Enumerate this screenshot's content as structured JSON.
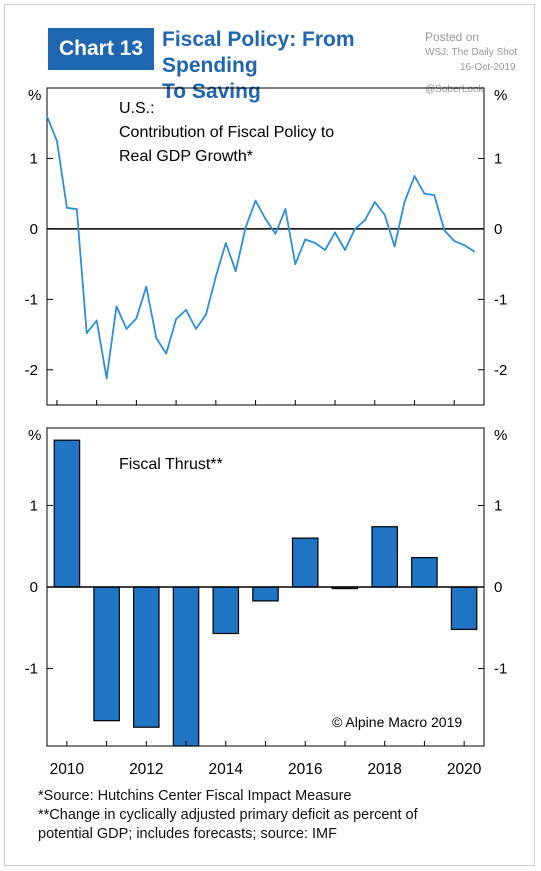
{
  "header": {
    "chart_label": "Chart 13",
    "title_line1": "Fiscal Policy: From Spending",
    "title_line2": "To Saving"
  },
  "watermark": {
    "posted_on": "Posted on",
    "source": "WSJ: The Daily Shot",
    "date": "16-Oct-2019",
    "handle": "@SoberLook"
  },
  "footnotes": {
    "line1": "*Source: Hutchins Center Fiscal Impact Measure",
    "line2": "**Change in cyclically adjusted primary deficit as percent of",
    "line3": "potential GDP; includes forecasts; source: IMF"
  },
  "colors": {
    "line": "#2f8fd6",
    "bar": "#1f74c4",
    "bar_edge": "#000000",
    "brand": "#1f66b0"
  },
  "chart_data": [
    {
      "type": "line",
      "title_lines": [
        "U.S.:",
        "Contribution of Fiscal Policy to",
        "Real GDP Growth*"
      ],
      "ylabel": "%",
      "ylim": [
        -2.5,
        2.0
      ],
      "yticks": [
        -2,
        -1,
        0,
        1
      ],
      "ytick_labels": [
        "-2",
        "-1",
        "0",
        "1"
      ],
      "xlim": [
        2009.75,
        2020.75
      ],
      "series": [
        {
          "x": [
            2009.75,
            2010.0,
            2010.25,
            2010.5,
            2010.75,
            2011.0,
            2011.25,
            2011.5,
            2011.75,
            2012.0,
            2012.25,
            2012.5,
            2012.75,
            2013.0,
            2013.25,
            2013.5,
            2013.75,
            2014.0,
            2014.25,
            2014.5,
            2014.75,
            2015.0,
            2015.25,
            2015.5,
            2015.75,
            2016.0,
            2016.25,
            2016.5,
            2016.75,
            2017.0,
            2017.25,
            2017.5,
            2017.75,
            2018.0,
            2018.25,
            2018.5,
            2018.75,
            2019.0,
            2019.25,
            2019.5,
            2019.75,
            2020.0,
            2020.25,
            2020.5
          ],
          "values": [
            1.6,
            1.25,
            0.3,
            0.28,
            -1.48,
            -1.3,
            -2.12,
            -1.1,
            -1.42,
            -1.27,
            -0.82,
            -1.55,
            -1.77,
            -1.28,
            -1.15,
            -1.42,
            -1.22,
            -0.68,
            -0.2,
            -0.6,
            0.02,
            0.4,
            0.14,
            -0.07,
            0.28,
            -0.5,
            -0.15,
            -0.2,
            -0.3,
            -0.05,
            -0.3,
            0.0,
            0.12,
            0.38,
            0.2,
            -0.25,
            0.38,
            0.75,
            0.5,
            0.48,
            -0.02,
            -0.17,
            -0.23,
            -0.32
          ]
        }
      ]
    },
    {
      "type": "bar",
      "title": "Fiscal Thrust**",
      "ylabel": "%",
      "ylim": [
        -1.95,
        1.95
      ],
      "yticks": [
        -1,
        0,
        1
      ],
      "ytick_labels": [
        "-1",
        "0",
        "1"
      ],
      "categories": [
        "2010",
        "2011",
        "2012",
        "2013",
        "2014",
        "2015",
        "2016",
        "2017",
        "2018",
        "2019",
        "2020"
      ],
      "values": [
        1.8,
        -1.64,
        -1.72,
        -1.95,
        -0.57,
        -0.17,
        0.6,
        -0.02,
        0.74,
        0.36,
        -0.52
      ],
      "annotation": "© Alpine Macro 2019",
      "xtick_labels": [
        "2010",
        "2012",
        "2014",
        "2016",
        "2018",
        "2020"
      ]
    }
  ]
}
